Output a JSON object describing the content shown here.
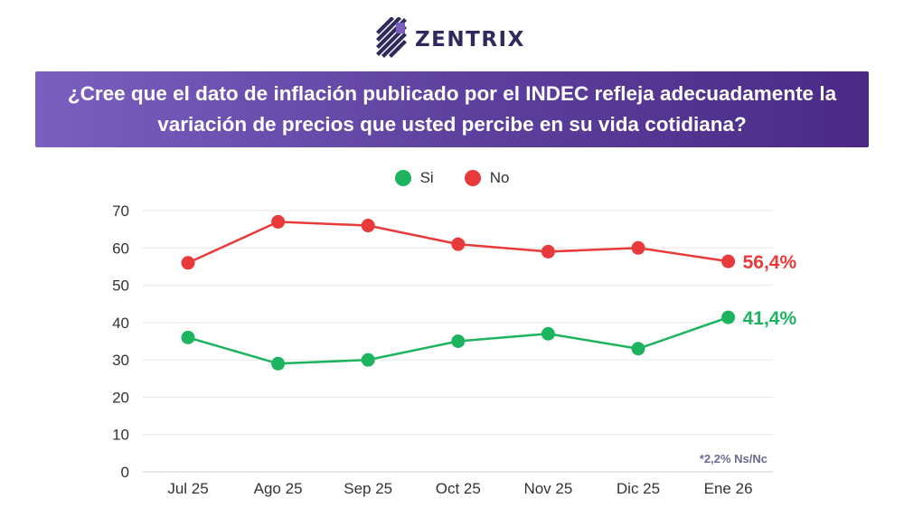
{
  "brand": {
    "name": "ZENTRIX",
    "color": "#2d2a5e"
  },
  "banner": {
    "title": "¿Cree que el dato de inflación publicado por el INDEC refleja adecuadamente la variación de precios que usted percibe en su vida cotidiana?",
    "gradient": [
      "#7a5fc0",
      "#4a2a86"
    ]
  },
  "footnote": "*2,2% Ns/Nc",
  "chart_data": {
    "type": "line",
    "title": "",
    "xlabel": "",
    "ylabel": "",
    "categories": [
      "Jul 25",
      "Ago 25",
      "Sep 25",
      "Oct 25",
      "Nov 25",
      "Dic 25",
      "Ene 26"
    ],
    "ylim": [
      0,
      70
    ],
    "yticks": [
      0,
      10,
      20,
      30,
      40,
      50,
      60,
      70
    ],
    "grid": true,
    "legend_position": "top-center",
    "series": [
      {
        "name": "Si",
        "color": "#1db460",
        "values": [
          36,
          29,
          30,
          35,
          37,
          33,
          41.4
        ],
        "end_label": "41,4%"
      },
      {
        "name": "No",
        "color": "#e83a3a",
        "values": [
          56,
          67,
          66,
          61,
          59,
          60,
          56.4
        ],
        "end_label": "56,4%"
      }
    ]
  }
}
